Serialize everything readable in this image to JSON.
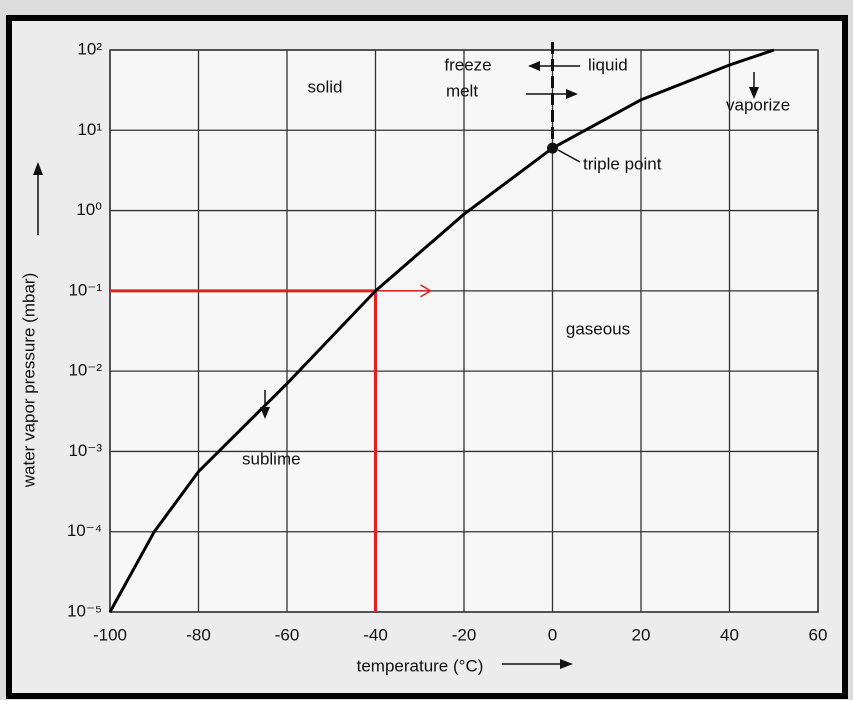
{
  "chart_data": {
    "type": "line",
    "x_label": "temperature (°C)",
    "y_label": "water vapor pressure (mbar)",
    "log_y": true,
    "grid": true,
    "xlim": [
      -100,
      60
    ],
    "xticks": [
      -100,
      -80,
      -60,
      -40,
      -20,
      0,
      20,
      40,
      60
    ],
    "ylim": [
      1e-05,
      100
    ],
    "yticks": [
      {
        "value": 1e-05,
        "label": "10⁻⁵"
      },
      {
        "value": 0.0001,
        "label": "10⁻⁴"
      },
      {
        "value": 0.001,
        "label": "10⁻³"
      },
      {
        "value": 0.01,
        "label": "10⁻²"
      },
      {
        "value": 0.1,
        "label": "10⁻¹"
      },
      {
        "value": 1,
        "label": "10⁰"
      },
      {
        "value": 10,
        "label": "10¹"
      },
      {
        "value": 100,
        "label": "10²"
      }
    ],
    "x": [
      -100,
      -90,
      -80,
      -60,
      -40,
      -20,
      0,
      20,
      40,
      50
    ],
    "series": [
      {
        "color": "#000000",
        "values": [
          1e-05,
          0.0001,
          0.00056,
          0.007,
          0.1,
          0.9,
          6,
          24,
          65,
          100
        ]
      }
    ],
    "reference": {
      "x": -40,
      "y": 0.1,
      "color": "#e02020"
    },
    "triple_point": {
      "x": 0,
      "y": 6
    },
    "annotations": [
      "solid",
      "freeze",
      "melt",
      "liquid",
      "vaporize",
      "triple point",
      "gaseous",
      "sublime"
    ]
  }
}
